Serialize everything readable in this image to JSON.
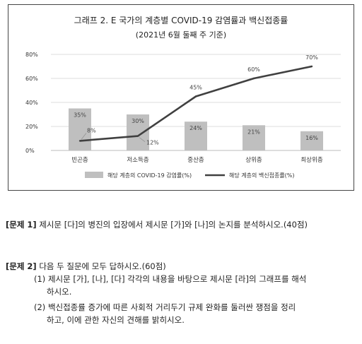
{
  "chart_data": {
    "type": "bar",
    "title": "그래프 2. E 국가의 계층별 COVID-19 감염률과 백신접종률",
    "subtitle": "(2021년 6월 둘째 주 기준)",
    "categories": [
      "빈곤층",
      "저소득층",
      "중산층",
      "상위층",
      "최상위층"
    ],
    "ylim": [
      0,
      80
    ],
    "yticks": [
      "0%",
      "20%",
      "40%",
      "60%",
      "80%"
    ],
    "grid": true,
    "legend_position": "bottom",
    "series": [
      {
        "name": "해당 계층의 COVID-19 감염률(%)",
        "kind": "bar",
        "color": "#bfbfbf",
        "values": [
          35,
          30,
          24,
          21,
          16
        ],
        "labels": [
          "35%",
          "30%",
          "24%",
          "21%",
          "16%"
        ]
      },
      {
        "name": "해당 계층의 백신접종률(%)",
        "kind": "line",
        "color": "#404040",
        "values": [
          8,
          12,
          45,
          60,
          70
        ],
        "labels": [
          "8%",
          "12%",
          "45%",
          "60%",
          "70%"
        ]
      }
    ]
  },
  "questions": {
    "q1": {
      "num": "[문제 1]",
      "text": "제시문 [다]의 병진의 입장에서 제시문 [가]와 [나]의 논지를 분석하시오.(40점)"
    },
    "q2": {
      "num": "[문제 2]",
      "text": "다음 두 질문에 모두 답하시오.(60점)",
      "sub1_line1": "(1) 제시문 [가], [나], [다] 각각의 내용을 바탕으로 제시문 [라]의 그래프를 해석",
      "sub1_line2": "하시오.",
      "sub2_line1": "(2) 백신접종률 증가에 따른 사회적 거리두기 규제 완화를 둘러싼 쟁점을 정리",
      "sub2_line2": "하고, 이에 관한 자신의 견해를 밝히시오."
    }
  }
}
